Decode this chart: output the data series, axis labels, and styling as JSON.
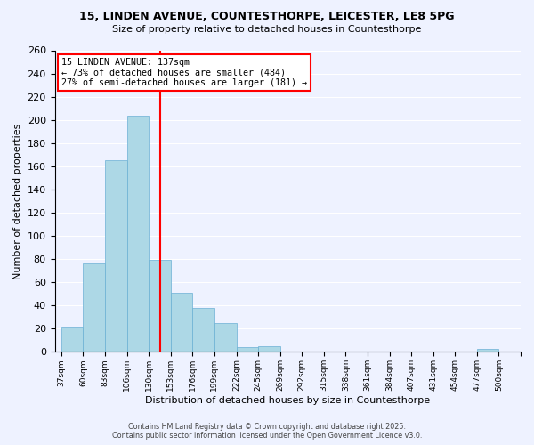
{
  "title1": "15, LINDEN AVENUE, COUNTESTHORPE, LEICESTER, LE8 5PG",
  "title2": "Size of property relative to detached houses in Countesthorpe",
  "xlabel": "Distribution of detached houses by size in Countesthorpe",
  "ylabel": "Number of detached properties",
  "bin_labels": [
    "37sqm",
    "60sqm",
    "83sqm",
    "106sqm",
    "130sqm",
    "153sqm",
    "176sqm",
    "199sqm",
    "222sqm",
    "245sqm",
    "269sqm",
    "292sqm",
    "315sqm",
    "338sqm",
    "361sqm",
    "384sqm",
    "407sqm",
    "431sqm",
    "454sqm",
    "477sqm",
    "500sqm"
  ],
  "bar_values": [
    22,
    76,
    165,
    204,
    79,
    51,
    38,
    25,
    4,
    5,
    0,
    0,
    0,
    0,
    0,
    0,
    0,
    0,
    0,
    3,
    0
  ],
  "bar_color": "#add8e6",
  "bar_edge_color": "#6ab0d4",
  "vline_x": 4.52,
  "vline_color": "red",
  "ylim": [
    0,
    260
  ],
  "yticks": [
    0,
    20,
    40,
    60,
    80,
    100,
    120,
    140,
    160,
    180,
    200,
    220,
    240,
    260
  ],
  "annotation_title": "15 LINDEN AVENUE: 137sqm",
  "annotation_line1": "← 73% of detached houses are smaller (484)",
  "annotation_line2": "27% of semi-detached houses are larger (181) →",
  "annotation_box_color": "white",
  "annotation_box_edge": "red",
  "footer1": "Contains HM Land Registry data © Crown copyright and database right 2025.",
  "footer2": "Contains public sector information licensed under the Open Government Licence v3.0.",
  "background_color": "#eef2ff"
}
